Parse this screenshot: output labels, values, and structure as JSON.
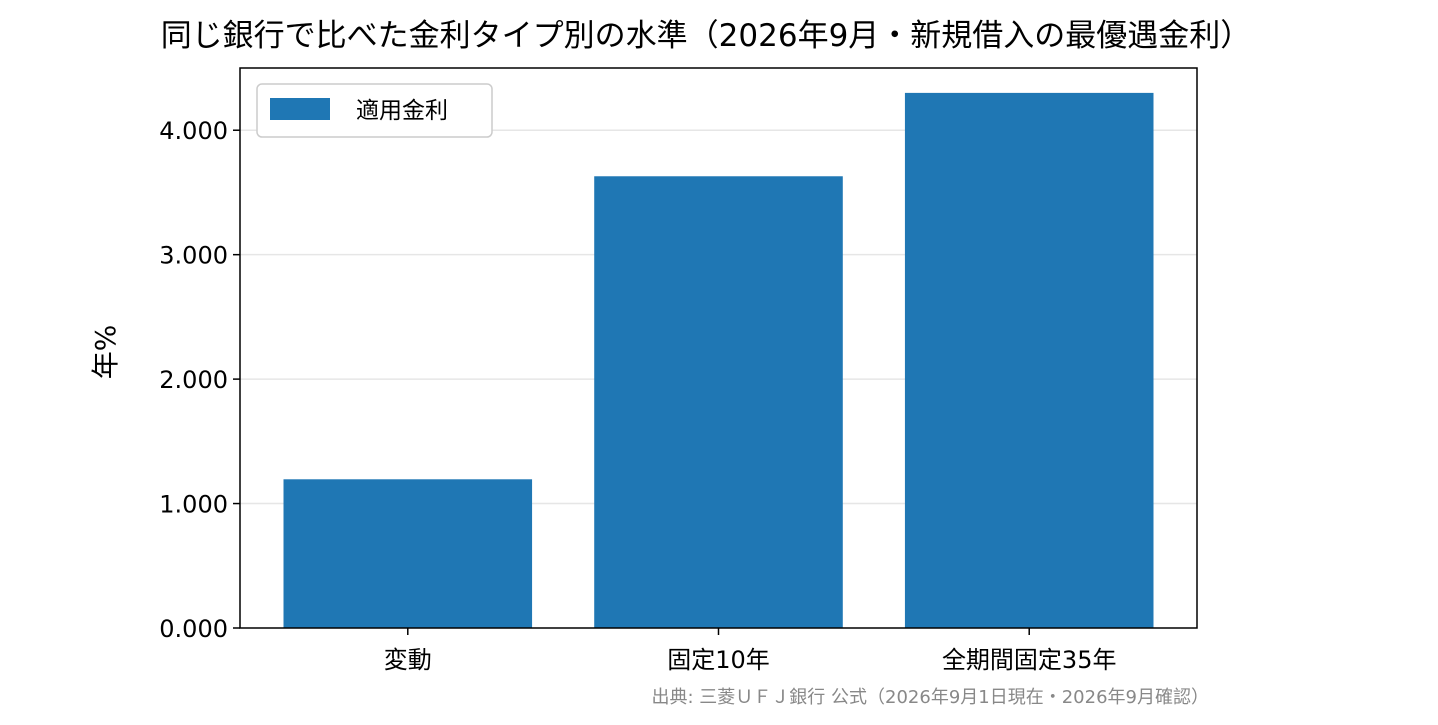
{
  "chart_data": {
    "type": "bar",
    "title": "同じ銀行で比べた金利タイプ別の水準（2026年9月・新規借入の最優遇金利）",
    "xlabel": "",
    "ylabel": "年%",
    "categories": [
      "変動",
      "固定10年",
      "全期間固定35年"
    ],
    "series": [
      {
        "name": "適用金利",
        "values": [
          1.195,
          3.63,
          4.3
        ]
      }
    ],
    "ylim": [
      0,
      4.5
    ],
    "yticks": [
      0,
      1,
      2,
      3,
      4
    ],
    "ytick_labels": [
      "0.000",
      "1.000",
      "2.000",
      "3.000",
      "4.000"
    ],
    "grid": "y",
    "legend": "top-left",
    "colors": {
      "bar": "#1f77b4",
      "grid": "#e6e6e6",
      "source_text": "#888888"
    }
  },
  "source_note": "出典: 三菱ＵＦＪ銀行 公式（2026年9月1日現在・2026年9月確認）"
}
